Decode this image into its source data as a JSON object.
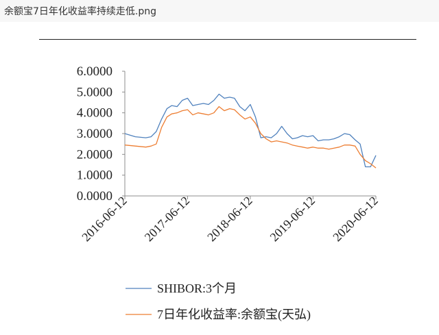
{
  "window": {
    "title": "余额宝7日年化收益率持续走低.png"
  },
  "chart_data": {
    "type": "line",
    "title": "",
    "xlabel": "",
    "ylabel": "",
    "ylim": [
      0,
      6
    ],
    "yticks": [
      "0.0000",
      "1.0000",
      "2.0000",
      "3.0000",
      "4.0000",
      "5.0000",
      "6.0000"
    ],
    "xticks": [
      "2016-06-12",
      "2017-06-12",
      "2018-06-12",
      "2019-06-12",
      "2020-06-12"
    ],
    "xlim": [
      "2016-06-12",
      "2020-06-12"
    ],
    "grid": false,
    "legend_position": "bottom",
    "series": [
      {
        "name": "SHIBOR:3个月",
        "color": "#4f81bd",
        "points": [
          [
            "2016-06-12",
            3.0
          ],
          [
            "2016-08-12",
            2.85
          ],
          [
            "2016-10-12",
            2.8
          ],
          [
            "2016-11-12",
            2.85
          ],
          [
            "2016-12-12",
            3.1
          ],
          [
            "2017-01-12",
            3.7
          ],
          [
            "2017-02-12",
            4.2
          ],
          [
            "2017-03-12",
            4.35
          ],
          [
            "2017-04-12",
            4.3
          ],
          [
            "2017-05-12",
            4.6
          ],
          [
            "2017-06-12",
            4.7
          ],
          [
            "2017-07-12",
            4.35
          ],
          [
            "2017-08-12",
            4.4
          ],
          [
            "2017-09-12",
            4.45
          ],
          [
            "2017-10-12",
            4.4
          ],
          [
            "2017-11-12",
            4.6
          ],
          [
            "2017-12-12",
            4.9
          ],
          [
            "2018-01-12",
            4.7
          ],
          [
            "2018-02-12",
            4.75
          ],
          [
            "2018-03-12",
            4.7
          ],
          [
            "2018-04-12",
            4.3
          ],
          [
            "2018-05-12",
            4.1
          ],
          [
            "2018-06-12",
            4.4
          ],
          [
            "2018-07-12",
            3.8
          ],
          [
            "2018-08-12",
            2.8
          ],
          [
            "2018-09-12",
            2.85
          ],
          [
            "2018-10-12",
            2.8
          ],
          [
            "2018-11-12",
            3.0
          ],
          [
            "2018-12-12",
            3.35
          ],
          [
            "2019-01-12",
            3.0
          ],
          [
            "2019-02-12",
            2.75
          ],
          [
            "2019-03-12",
            2.8
          ],
          [
            "2019-04-12",
            2.9
          ],
          [
            "2019-05-12",
            2.85
          ],
          [
            "2019-06-12",
            2.9
          ],
          [
            "2019-07-12",
            2.65
          ],
          [
            "2019-08-12",
            2.7
          ],
          [
            "2019-09-12",
            2.7
          ],
          [
            "2019-10-12",
            2.75
          ],
          [
            "2019-11-12",
            2.85
          ],
          [
            "2019-12-12",
            3.0
          ],
          [
            "2020-01-12",
            2.95
          ],
          [
            "2020-02-12",
            2.7
          ],
          [
            "2020-03-12",
            2.5
          ],
          [
            "2020-04-12",
            1.4
          ],
          [
            "2020-05-12",
            1.4
          ],
          [
            "2020-06-12",
            1.95
          ]
        ]
      },
      {
        "name": "7日年化收益率:余额宝(天弘)",
        "color": "#ed7d31",
        "points": [
          [
            "2016-06-12",
            2.45
          ],
          [
            "2016-08-12",
            2.4
          ],
          [
            "2016-10-12",
            2.35
          ],
          [
            "2016-11-12",
            2.4
          ],
          [
            "2016-12-12",
            2.5
          ],
          [
            "2017-01-12",
            3.3
          ],
          [
            "2017-02-12",
            3.8
          ],
          [
            "2017-03-12",
            3.95
          ],
          [
            "2017-04-12",
            4.0
          ],
          [
            "2017-05-12",
            4.1
          ],
          [
            "2017-06-12",
            4.15
          ],
          [
            "2017-07-12",
            3.9
          ],
          [
            "2017-08-12",
            4.0
          ],
          [
            "2017-09-12",
            3.95
          ],
          [
            "2017-10-12",
            3.9
          ],
          [
            "2017-11-12",
            4.0
          ],
          [
            "2017-12-12",
            4.3
          ],
          [
            "2018-01-12",
            4.1
          ],
          [
            "2018-02-12",
            4.2
          ],
          [
            "2018-03-12",
            4.15
          ],
          [
            "2018-04-12",
            3.9
          ],
          [
            "2018-05-12",
            3.7
          ],
          [
            "2018-06-12",
            3.8
          ],
          [
            "2018-07-12",
            3.5
          ],
          [
            "2018-08-12",
            3.0
          ],
          [
            "2018-09-12",
            2.75
          ],
          [
            "2018-10-12",
            2.6
          ],
          [
            "2018-11-12",
            2.65
          ],
          [
            "2018-12-12",
            2.6
          ],
          [
            "2019-01-12",
            2.55
          ],
          [
            "2019-02-12",
            2.45
          ],
          [
            "2019-03-12",
            2.4
          ],
          [
            "2019-04-12",
            2.35
          ],
          [
            "2019-05-12",
            2.3
          ],
          [
            "2019-06-12",
            2.35
          ],
          [
            "2019-07-12",
            2.3
          ],
          [
            "2019-08-12",
            2.3
          ],
          [
            "2019-09-12",
            2.25
          ],
          [
            "2019-10-12",
            2.3
          ],
          [
            "2019-11-12",
            2.35
          ],
          [
            "2019-12-12",
            2.45
          ],
          [
            "2020-01-12",
            2.45
          ],
          [
            "2020-02-12",
            2.4
          ],
          [
            "2020-03-12",
            2.0
          ],
          [
            "2020-04-12",
            1.7
          ],
          [
            "2020-05-12",
            1.55
          ],
          [
            "2020-06-12",
            1.35
          ]
        ]
      }
    ]
  }
}
